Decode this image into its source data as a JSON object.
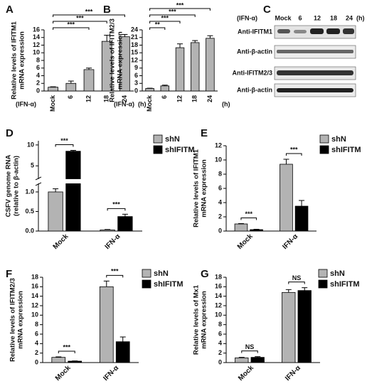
{
  "chart_data": [
    {
      "panel": "A",
      "type": "bar",
      "ylabel": [
        "Relative levels of IFITM1",
        "mRNA expression"
      ],
      "condition": "(IFN-α)",
      "unit": "(h)",
      "categories": [
        "Mock",
        "6",
        "12",
        "18",
        "24"
      ],
      "values": [
        1,
        2,
        5.6,
        13,
        14.2
      ],
      "errors": [
        0.1,
        0.6,
        0.4,
        1.6,
        0.6
      ],
      "color": "#b3b3b3",
      "ylim": [
        0,
        16
      ],
      "yticks": [
        0,
        2,
        4,
        6,
        8,
        10,
        12,
        14,
        16
      ],
      "significance": [
        null,
        null,
        "***",
        "***",
        "***"
      ]
    },
    {
      "panel": "B",
      "type": "bar",
      "ylabel": [
        "Relative levels of IFITM2/3",
        "mRNA expression"
      ],
      "condition": "(IFN-α)",
      "unit": "(h)",
      "categories": [
        "Mock",
        "6",
        "12",
        "18",
        "24"
      ],
      "values": [
        1,
        2,
        17,
        19,
        20.7
      ],
      "errors": [
        0.1,
        0.3,
        1.5,
        0.8,
        1.0
      ],
      "color": "#b3b3b3",
      "ylim": [
        0,
        24
      ],
      "yticks": [
        0,
        3,
        6,
        9,
        12,
        15,
        18,
        21,
        24
      ],
      "significance": [
        null,
        "**",
        "***",
        "***",
        "***"
      ]
    },
    {
      "panel": "D",
      "type": "grouped_bar",
      "ylabel": [
        "CSFV genome RNA",
        "(relative to β-actin)"
      ],
      "categories": [
        "Mock",
        "IFN-α"
      ],
      "series": [
        {
          "name": "shN",
          "color": "#b3b3b3",
          "values": [
            1.0,
            0.03
          ],
          "errors": [
            0.08,
            0.01
          ]
        },
        {
          "name": "shIFITM",
          "color": "#000000",
          "values": [
            8.5,
            0.37
          ],
          "errors": [
            0.2,
            0.06
          ]
        }
      ],
      "ylim": [
        0,
        11
      ],
      "ybreak": [
        1.2,
        2
      ],
      "yticks": [
        {
          "value": 0,
          "label": "0.0"
        },
        {
          "value": 0.5,
          "label": "0.5"
        },
        {
          "value": 1,
          "label": "1.0"
        },
        5,
        10
      ],
      "significance": [
        "***",
        "***"
      ]
    },
    {
      "panel": "E",
      "type": "grouped_bar",
      "ylabel": [
        "Relative levels of IFITM1",
        "mRNA expression"
      ],
      "categories": [
        "Mock",
        "IFN-α"
      ],
      "series": [
        {
          "name": "shN",
          "color": "#b3b3b3",
          "values": [
            1.0,
            9.4
          ],
          "errors": [
            0.05,
            0.7
          ]
        },
        {
          "name": "shIFITM",
          "color": "#000000",
          "values": [
            0.2,
            3.5
          ],
          "errors": [
            0.05,
            0.8
          ]
        }
      ],
      "ylim": [
        0,
        12
      ],
      "yticks": [
        0,
        2,
        4,
        6,
        8,
        10,
        12
      ],
      "significance": [
        "***",
        "***"
      ]
    },
    {
      "panel": "F",
      "type": "grouped_bar",
      "ylabel": [
        "Relative levels of IFITM2/3",
        "mRNA expression"
      ],
      "categories": [
        "Mock",
        "IFN-α"
      ],
      "series": [
        {
          "name": "shN",
          "color": "#b3b3b3",
          "values": [
            1.1,
            16
          ],
          "errors": [
            0.1,
            1.2
          ]
        },
        {
          "name": "shIFITM",
          "color": "#000000",
          "values": [
            0.3,
            4.4
          ],
          "errors": [
            0.05,
            1.0
          ]
        }
      ],
      "ylim": [
        0,
        18
      ],
      "yticks": [
        0,
        2,
        4,
        6,
        8,
        10,
        12,
        14,
        16,
        18
      ],
      "significance": [
        "***",
        "***"
      ]
    },
    {
      "panel": "G",
      "type": "grouped_bar",
      "ylabel": [
        "Relative levels of Mx1",
        "mRNA expression"
      ],
      "categories": [
        "Mock",
        "IFN-α"
      ],
      "series": [
        {
          "name": "shN",
          "color": "#b3b3b3",
          "values": [
            1.0,
            14.8
          ],
          "errors": [
            0.1,
            0.6
          ]
        },
        {
          "name": "shIFITM",
          "color": "#000000",
          "values": [
            1.1,
            15.2
          ],
          "errors": [
            0.15,
            0.6
          ]
        }
      ],
      "ylim": [
        0,
        18
      ],
      "yticks": [
        0,
        2,
        4,
        6,
        8,
        10,
        12,
        14,
        16,
        18
      ],
      "significance": [
        "NS",
        "NS"
      ]
    }
  ],
  "blot": {
    "panel": "C",
    "condition": "(IFN-α)",
    "lanes": [
      "Mock",
      "6",
      "12",
      "18",
      "24"
    ],
    "unit": "(h)",
    "rows": [
      "Anti-IFITM1",
      "Anti-β-actin",
      "Anti-IFITM2/3",
      "Anti-β-actin"
    ]
  }
}
